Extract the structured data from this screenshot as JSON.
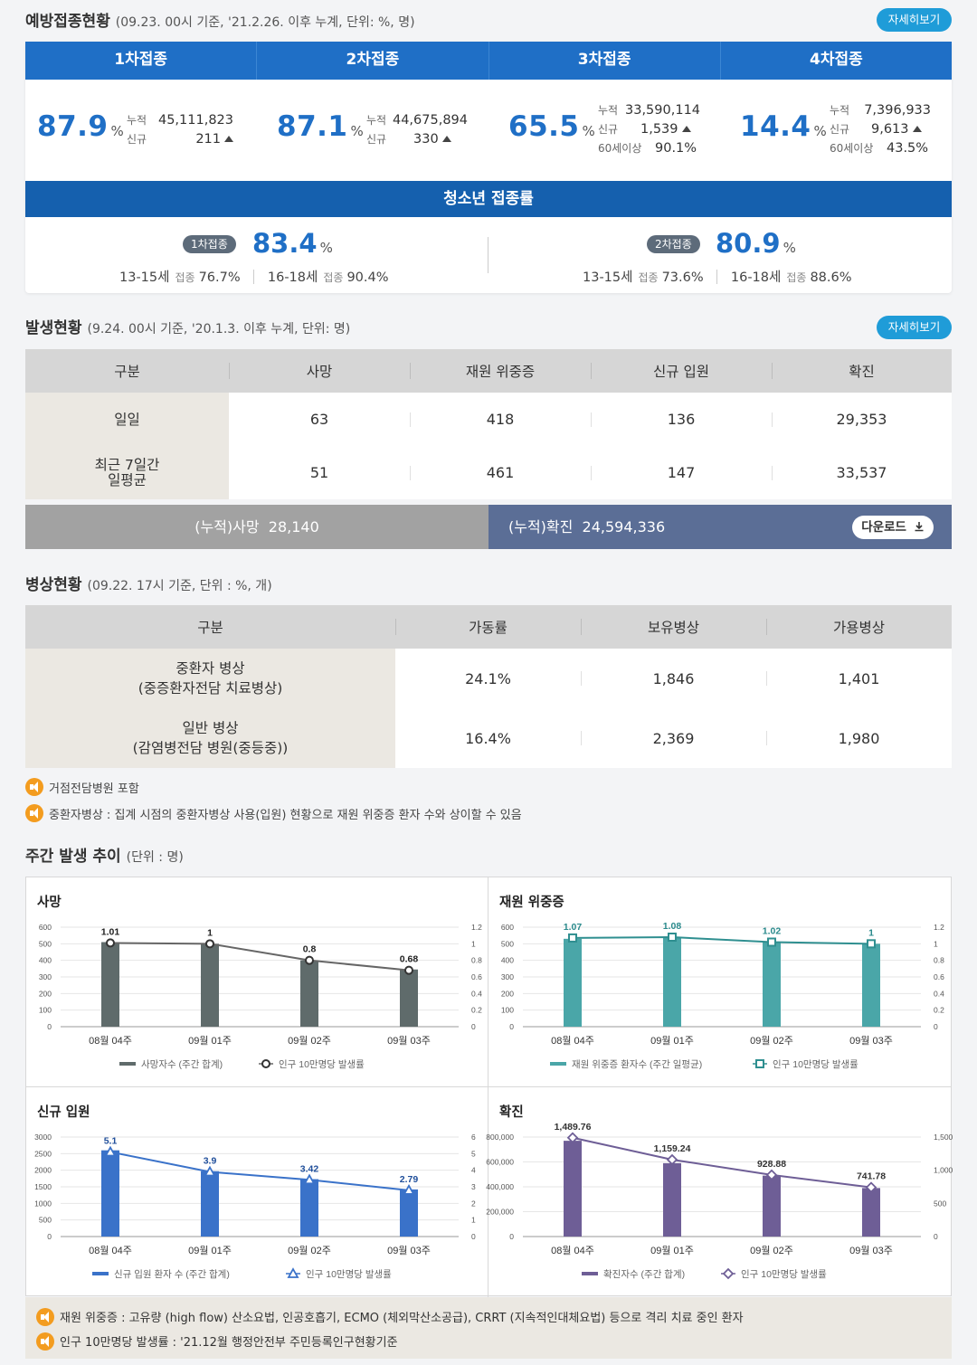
{
  "vaccination": {
    "title": "예방접종현황",
    "subtitle": "(09.23. 00시 기준, '21.2.26. 이후 누계, 단위: %, 명)",
    "more_label": "자세히보기",
    "doses": [
      {
        "label": "1차접종",
        "rate": "87.9",
        "unit": "%",
        "cum_label": "누적",
        "cum": "45,111,823",
        "new_label": "신규",
        "new": "211",
        "over60_label": "",
        "over60": ""
      },
      {
        "label": "2차접종",
        "rate": "87.1",
        "unit": "%",
        "cum_label": "누적",
        "cum": "44,675,894",
        "new_label": "신규",
        "new": "330",
        "over60_label": "",
        "over60": ""
      },
      {
        "label": "3차접종",
        "rate": "65.5",
        "unit": "%",
        "cum_label": "누적",
        "cum": "33,590,114",
        "new_label": "신규",
        "new": "1,539",
        "over60_label": "60세이상",
        "over60": "90.1%"
      },
      {
        "label": "4차접종",
        "rate": "14.4",
        "unit": "%",
        "cum_label": "누적",
        "cum": "7,396,933",
        "new_label": "신규",
        "new": "9,613",
        "over60_label": "60세이상",
        "over60": "43.5%"
      }
    ],
    "teen": {
      "title": "청소년 접종률",
      "items": [
        {
          "badge": "1차접종",
          "rate": "83.4",
          "unit": "%",
          "g1": "13-15세",
          "g1_label": "접종",
          "g1_val": "76.7%",
          "g2": "16-18세",
          "g2_label": "접종",
          "g2_val": "90.4%"
        },
        {
          "badge": "2차접종",
          "rate": "80.9",
          "unit": "%",
          "g1": "13-15세",
          "g1_label": "접종",
          "g1_val": "73.6%",
          "g2": "16-18세",
          "g2_label": "접종",
          "g2_val": "88.6%"
        }
      ]
    }
  },
  "outbreak": {
    "title": "발생현황",
    "subtitle": "(9.24. 00시 기준, '20.1.3. 이후 누계, 단위: 명)",
    "more_label": "자세히보기",
    "headers": [
      "구분",
      "사망",
      "재원 위중증",
      "신규 입원",
      "확진"
    ],
    "rows": [
      {
        "label": "일일",
        "values": [
          "63",
          "418",
          "136",
          "29,353"
        ]
      },
      {
        "label": "최근 7일간\n일평균",
        "values": [
          "51",
          "461",
          "147",
          "33,537"
        ]
      }
    ],
    "cum_death_label": "(누적)사망",
    "cum_death": "28,140",
    "cum_confirmed_label": "(누적)확진",
    "cum_confirmed": "24,594,336",
    "download_label": "다운로드"
  },
  "beds": {
    "title": "병상현황",
    "subtitle": "(09.22. 17시 기준, 단위 : %, 개)",
    "headers": [
      "구분",
      "가동률",
      "보유병상",
      "가용병상"
    ],
    "rows": [
      {
        "label": "중환자 병상\n(중증환자전담 치료병상)",
        "values": [
          "24.1%",
          "1,846",
          "1,401"
        ]
      },
      {
        "label": "일반 병상\n(감염병전담 병원(중등중))",
        "values": [
          "16.4%",
          "2,369",
          "1,980"
        ]
      }
    ],
    "notes": [
      "거점전담병원 포함",
      "중환자병상 : 집계 시점의 중환자병상 사용(입원) 현황으로 재원 위중증 환자 수와 상이할 수 있음"
    ]
  },
  "weekly": {
    "title": "주간 발생 추이",
    "subtitle": "(단위 : 명)",
    "footnotes": [
      "재원 위중증 : 고유량 (high flow) 산소요법, 인공호흡기, ECMO (체외막산소공급), CRRT (지속적인대체요법) 등으로 격리 치료 중인 환자",
      "인구 10만명당 발생률 : '21.12월 행정안전부 주민등록인구현황기준"
    ]
  },
  "colors": {
    "blue": "#1f6fc6",
    "navy": "#1560ae",
    "pill": "#1f9cd8",
    "death": "#5f6b6b",
    "severe": "#4aa6a8",
    "admit": "#3a72c9",
    "confirm": "#6e5e96"
  },
  "chart_data": [
    {
      "type": "bar",
      "title": "사망",
      "categories": [
        "08월 04주",
        "09월 01주",
        "09월 02주",
        "09월 03주"
      ],
      "series": [
        {
          "name": "사망자수 (주간 합계)",
          "values": [
            510,
            500,
            400,
            345
          ],
          "color": "#5f6b6b"
        },
        {
          "name": "인구 10만명당 발생률",
          "type": "line",
          "axis": "right",
          "values": [
            1.01,
            1,
            0.8,
            0.68
          ],
          "labels": [
            "1.01",
            "1",
            "0.8",
            "0.68"
          ]
        }
      ],
      "ylim": [
        0,
        600
      ],
      "yticks": [
        0,
        100,
        200,
        300,
        400,
        500,
        600
      ],
      "y2lim": [
        0,
        1.2
      ],
      "y2ticks": [
        "0",
        "0.2",
        "0.4",
        "0.6",
        "0.8",
        "1",
        "1.2"
      ],
      "marker": "circle",
      "line_color": "#666666"
    },
    {
      "type": "bar",
      "title": "재원 위중증",
      "categories": [
        "08월 04주",
        "09월 01주",
        "09월 02주",
        "09월 03주"
      ],
      "series": [
        {
          "name": "재원 위중증 환자수 (주간 일평균)",
          "values": [
            530,
            540,
            510,
            500
          ],
          "color": "#4aa6a8"
        },
        {
          "name": "인구 10만명당 발생률",
          "type": "line",
          "axis": "right",
          "values": [
            1.07,
            1.08,
            1.02,
            1
          ],
          "labels": [
            "1.07",
            "1.08",
            "1.02",
            "1"
          ]
        }
      ],
      "ylim": [
        0,
        600
      ],
      "yticks": [
        0,
        100,
        200,
        300,
        400,
        500,
        600
      ],
      "y2lim": [
        0,
        1.2
      ],
      "y2ticks": [
        "0",
        "0.2",
        "0.4",
        "0.6",
        "0.8",
        "1",
        "1.2"
      ],
      "marker": "square",
      "line_color": "#2f8f90"
    },
    {
      "type": "bar",
      "title": "신규 입원",
      "categories": [
        "08월 04주",
        "09월 01주",
        "09월 02주",
        "09월 03주"
      ],
      "series": [
        {
          "name": "신규 입원 환자 수 (주간 합계)",
          "values": [
            2600,
            1970,
            1730,
            1420
          ],
          "color": "#3a72c9"
        },
        {
          "name": "인구 10만명당 발생률",
          "type": "line",
          "axis": "right",
          "values": [
            5.1,
            3.9,
            3.42,
            2.79
          ],
          "labels": [
            "5.1",
            "3.9",
            "3.42",
            "2.79"
          ]
        }
      ],
      "ylim": [
        0,
        3000
      ],
      "yticks": [
        0,
        500,
        1000,
        1500,
        2000,
        2500,
        3000
      ],
      "y2lim": [
        0,
        6
      ],
      "y2ticks": [
        "0",
        "1",
        "2",
        "3",
        "4",
        "5",
        "6"
      ],
      "marker": "triangle",
      "line_color": "#3a72c9"
    },
    {
      "type": "bar",
      "title": "확진",
      "categories": [
        "08월 04주",
        "09월 01주",
        "09월 02주",
        "09월 03주"
      ],
      "series": [
        {
          "name": "확진자수 (주간 합계)",
          "values": [
            770000,
            590000,
            490000,
            390000
          ],
          "color": "#6e5e96"
        },
        {
          "name": "인구 10만명당 발생률",
          "type": "line",
          "axis": "right",
          "values": [
            1489.76,
            1159.24,
            928.88,
            741.78
          ],
          "labels": [
            "1,489.76",
            "1,159.24",
            "928.88",
            "741.78"
          ]
        }
      ],
      "ylim": [
        0,
        800000
      ],
      "yticks": [
        0,
        200000,
        400000,
        600000,
        800000
      ],
      "ytick_labels": [
        "0",
        "200,000",
        "400,000",
        "600,000",
        "800,000"
      ],
      "y2lim": [
        0,
        1500
      ],
      "y2ticks": [
        "0",
        "500",
        "1,000",
        "1,500"
      ],
      "marker": "diamond",
      "line_color": "#6e5e96"
    }
  ]
}
